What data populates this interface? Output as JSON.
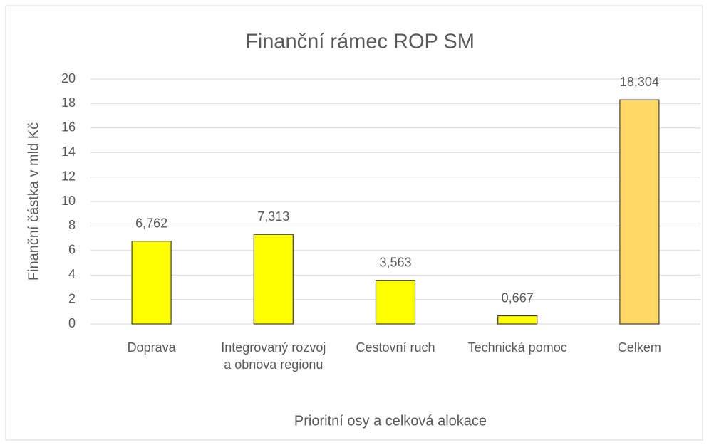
{
  "chart_data": {
    "type": "bar",
    "title": "Finanční rámec ROP SM",
    "categories": [
      "Doprava",
      "Integrovaný rozvoj a obnova regionu",
      "Cestovní ruch",
      "Technická pomoc",
      "Celkem"
    ],
    "values": [
      6.762,
      7.313,
      3.563,
      0.667,
      18.304
    ],
    "value_labels": [
      "6,762",
      "7,313",
      "3,563",
      "0,667",
      "18,304"
    ],
    "colors": [
      "#ffff00",
      "#ffff00",
      "#ffff00",
      "#ffff00",
      "#ffd966"
    ],
    "x_label": "Prioritní osy a celková alokace",
    "y_label": "Finanční částka v mld Kč",
    "ylim": [
      0,
      20
    ],
    "yticks": [
      0,
      2,
      4,
      6,
      8,
      10,
      12,
      14,
      16,
      18,
      20
    ],
    "grid": true
  }
}
